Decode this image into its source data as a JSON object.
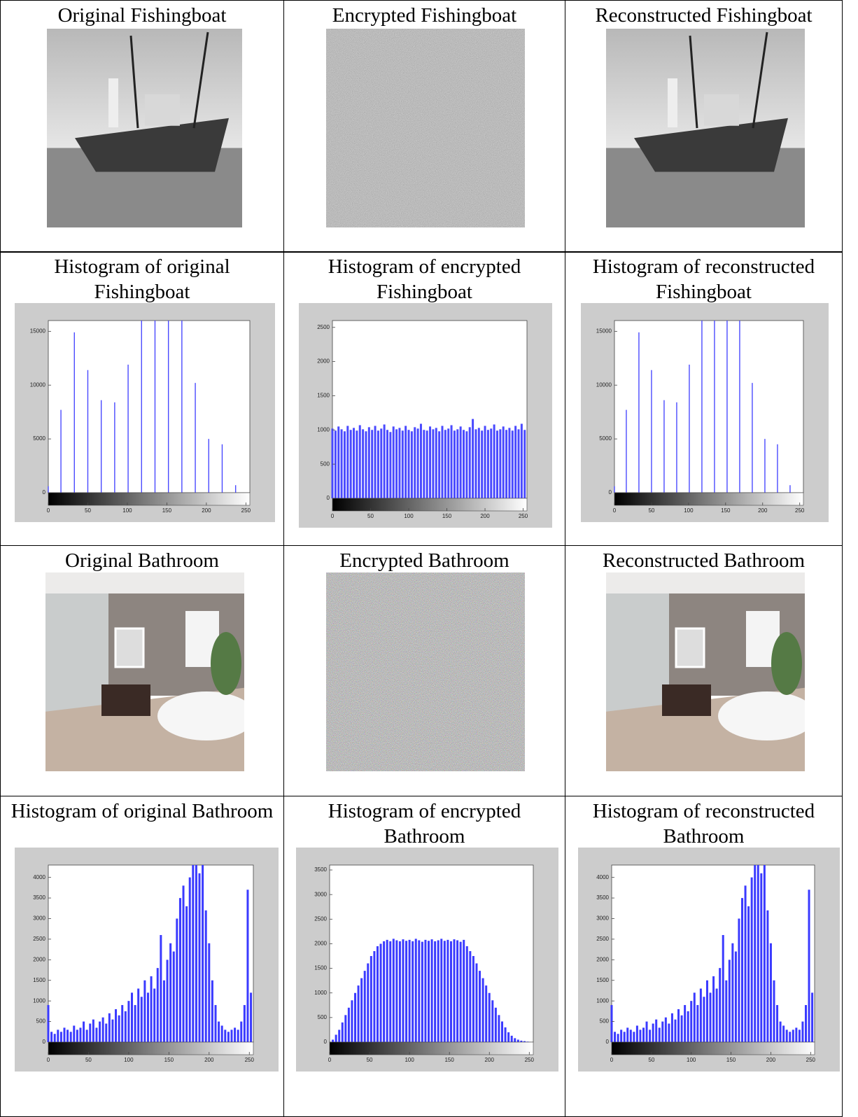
{
  "cells": [
    "Original Fishingboat",
    "Encrypted Fishingboat",
    "Reconstructed Fishingboat",
    "Original Bathroom",
    "Encrypted Bathroom",
    "Reconstructed Bathroom"
  ],
  "chart_data": [
    {
      "type": "stem",
      "title": "Histogram of original Fishingboat",
      "color": "#4a4aff",
      "x": [
        0,
        16,
        33,
        50,
        67,
        84,
        101,
        118,
        135,
        152,
        169,
        186,
        203,
        220,
        237
      ],
      "values": [
        600,
        7700,
        14900,
        11400,
        8600,
        8400,
        11900,
        16000,
        16000,
        16000,
        16000,
        10200,
        5000,
        4500,
        700
      ],
      "xlim": [
        0,
        255
      ],
      "xticks": [
        0,
        50,
        100,
        150,
        200,
        250
      ],
      "ylim": [
        0,
        16000
      ],
      "yticks": [
        0,
        5000,
        10000,
        15000
      ]
    },
    {
      "type": "stem",
      "title": "Histogram of encrypted Fishingboat",
      "color": "#4a4aff",
      "x": [
        0,
        4,
        8,
        12,
        16,
        20,
        24,
        28,
        32,
        36,
        40,
        44,
        48,
        52,
        56,
        60,
        64,
        68,
        72,
        76,
        80,
        84,
        88,
        92,
        96,
        100,
        104,
        108,
        112,
        116,
        120,
        124,
        128,
        132,
        136,
        140,
        144,
        148,
        152,
        156,
        160,
        164,
        168,
        172,
        176,
        180,
        184,
        188,
        192,
        196,
        200,
        204,
        208,
        212,
        216,
        220,
        224,
        228,
        232,
        236,
        240,
        244,
        248,
        252
      ],
      "values": [
        1020,
        990,
        1050,
        1010,
        980,
        1060,
        1000,
        1030,
        990,
        1070,
        1010,
        980,
        1040,
        1000,
        1060,
        990,
        1020,
        1080,
        1000,
        970,
        1050,
        1010,
        1030,
        990,
        1060,
        1000,
        980,
        1040,
        1020,
        1090,
        1000,
        990,
        1050,
        1010,
        1030,
        980,
        1060,
        1000,
        1020,
        1070,
        990,
        1010,
        1050,
        1000,
        980,
        1040,
        1160,
        1010,
        1030,
        990,
        1060,
        1000,
        1020,
        1080,
        990,
        1010,
        1050,
        1000,
        1030,
        990,
        1060,
        1010,
        1090,
        1000
      ],
      "xlim": [
        0,
        255
      ],
      "xticks": [
        0,
        50,
        100,
        150,
        200,
        250
      ],
      "ylim": [
        0,
        2600
      ],
      "yticks": [
        0,
        500,
        1000,
        1500,
        2000,
        2500
      ]
    },
    {
      "type": "stem",
      "title": "Histogram of reconstructed Fishingboat",
      "color": "#4a4aff",
      "x": [
        0,
        16,
        33,
        50,
        67,
        84,
        101,
        118,
        135,
        152,
        169,
        186,
        203,
        220,
        237
      ],
      "values": [
        600,
        7700,
        14900,
        11400,
        8600,
        8400,
        11900,
        16000,
        16000,
        16000,
        16000,
        10200,
        5000,
        4500,
        700
      ],
      "xlim": [
        0,
        255
      ],
      "xticks": [
        0,
        50,
        100,
        150,
        200,
        250
      ],
      "ylim": [
        0,
        16000
      ],
      "yticks": [
        0,
        5000,
        10000,
        15000
      ]
    },
    {
      "type": "stem",
      "title": "Histogram of original Bathroom",
      "color": "#3a3aff",
      "x": [
        0,
        4,
        8,
        12,
        16,
        20,
        24,
        28,
        32,
        36,
        40,
        44,
        48,
        52,
        56,
        60,
        64,
        68,
        72,
        76,
        80,
        84,
        88,
        92,
        96,
        100,
        104,
        108,
        112,
        116,
        120,
        124,
        128,
        132,
        136,
        140,
        144,
        148,
        152,
        156,
        160,
        164,
        168,
        172,
        176,
        180,
        184,
        188,
        192,
        196,
        200,
        204,
        208,
        212,
        216,
        220,
        224,
        228,
        232,
        236,
        240,
        244,
        248,
        252
      ],
      "values": [
        900,
        250,
        200,
        300,
        250,
        350,
        300,
        250,
        400,
        300,
        350,
        500,
        300,
        450,
        550,
        350,
        500,
        600,
        450,
        700,
        550,
        800,
        650,
        900,
        750,
        1000,
        1200,
        900,
        1300,
        1100,
        1500,
        1200,
        1600,
        1300,
        1800,
        2600,
        1500,
        2000,
        2400,
        2200,
        3000,
        3500,
        3800,
        3300,
        4000,
        4300,
        4300,
        4100,
        4300,
        3200,
        2400,
        1500,
        900,
        500,
        400,
        300,
        250,
        300,
        350,
        300,
        500,
        900,
        3700,
        1200
      ],
      "xlim": [
        0,
        255
      ],
      "xticks": [
        0,
        50,
        100,
        150,
        200,
        250
      ],
      "ylim": [
        0,
        4300
      ],
      "yticks": [
        0,
        500,
        1000,
        1500,
        2000,
        2500,
        3000,
        3500,
        4000
      ]
    },
    {
      "type": "stem",
      "title": "Histogram of encrypted Bathroom",
      "color": "#3a3aff",
      "x": [
        0,
        4,
        8,
        12,
        16,
        20,
        24,
        28,
        32,
        36,
        40,
        44,
        48,
        52,
        56,
        60,
        64,
        68,
        72,
        76,
        80,
        84,
        88,
        92,
        96,
        100,
        104,
        108,
        112,
        116,
        120,
        124,
        128,
        132,
        136,
        140,
        144,
        148,
        152,
        156,
        160,
        164,
        168,
        172,
        176,
        180,
        184,
        188,
        192,
        196,
        200,
        204,
        208,
        212,
        216,
        220,
        224,
        228,
        232,
        236,
        240,
        244,
        248,
        252
      ],
      "values": [
        0,
        50,
        150,
        250,
        400,
        550,
        700,
        850,
        1000,
        1150,
        1300,
        1450,
        1600,
        1750,
        1850,
        1950,
        2000,
        2050,
        2080,
        2050,
        2100,
        2070,
        2050,
        2090,
        2060,
        2080,
        2050,
        2100,
        2070,
        2040,
        2080,
        2060,
        2090,
        2050,
        2070,
        2100,
        2060,
        2080,
        2050,
        2090,
        2070,
        2040,
        2080,
        1950,
        1850,
        1750,
        1600,
        1450,
        1300,
        1150,
        1000,
        850,
        700,
        550,
        420,
        300,
        200,
        130,
        80,
        50,
        30,
        20,
        10,
        0
      ],
      "xlim": [
        0,
        255
      ],
      "xticks": [
        0,
        50,
        100,
        150,
        200,
        250
      ],
      "ylim": [
        0,
        3600
      ],
      "yticks": [
        0,
        500,
        1000,
        1500,
        2000,
        2500,
        3000,
        3500
      ]
    },
    {
      "type": "stem",
      "title": "Histogram of reconstructed Bathroom",
      "color": "#3a3aff",
      "x": [
        0,
        4,
        8,
        12,
        16,
        20,
        24,
        28,
        32,
        36,
        40,
        44,
        48,
        52,
        56,
        60,
        64,
        68,
        72,
        76,
        80,
        84,
        88,
        92,
        96,
        100,
        104,
        108,
        112,
        116,
        120,
        124,
        128,
        132,
        136,
        140,
        144,
        148,
        152,
        156,
        160,
        164,
        168,
        172,
        176,
        180,
        184,
        188,
        192,
        196,
        200,
        204,
        208,
        212,
        216,
        220,
        224,
        228,
        232,
        236,
        240,
        244,
        248,
        252
      ],
      "values": [
        900,
        250,
        200,
        300,
        250,
        350,
        300,
        250,
        400,
        300,
        350,
        500,
        300,
        450,
        550,
        350,
        500,
        600,
        450,
        700,
        550,
        800,
        650,
        900,
        750,
        1000,
        1200,
        900,
        1300,
        1100,
        1500,
        1200,
        1600,
        1300,
        1800,
        2600,
        1500,
        2000,
        2400,
        2200,
        3000,
        3500,
        3800,
        3300,
        4000,
        4300,
        4300,
        4100,
        4300,
        3200,
        2400,
        1500,
        900,
        500,
        400,
        300,
        250,
        300,
        350,
        300,
        500,
        900,
        3700,
        1200
      ],
      "xlim": [
        0,
        255
      ],
      "xticks": [
        0,
        50,
        100,
        150,
        200,
        250
      ],
      "ylim": [
        0,
        4300
      ],
      "yticks": [
        0,
        500,
        1000,
        1500,
        2000,
        2500,
        3000,
        3500,
        4000
      ]
    }
  ]
}
